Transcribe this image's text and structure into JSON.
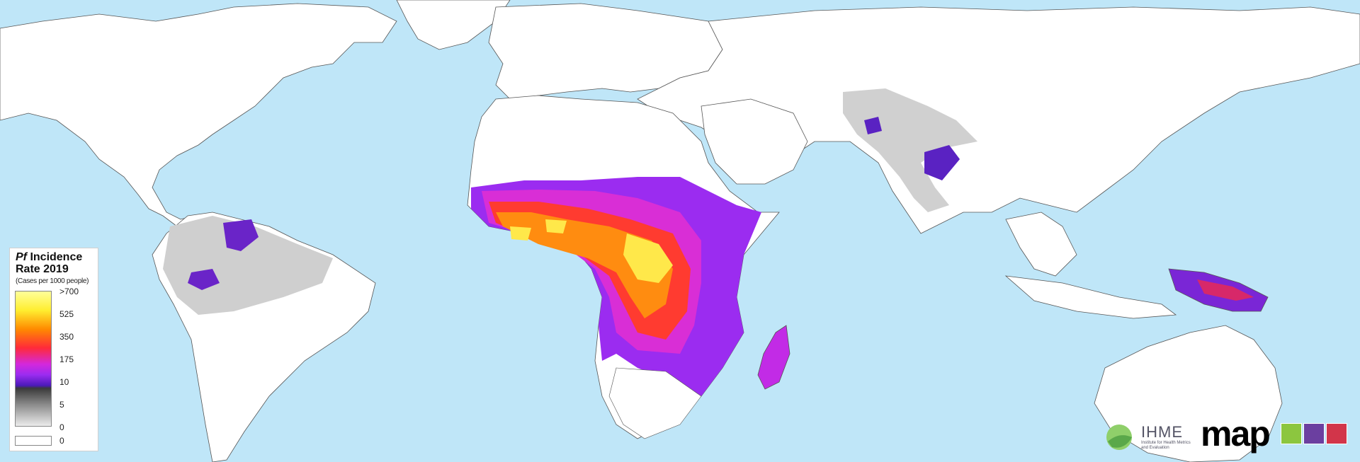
{
  "legend": {
    "title_prefix": "Pf",
    "title_rest": " Incidence Rate 2019",
    "subtitle": "(Cases per 1000 people)",
    "ticks": [
      ">700",
      "525",
      "350",
      "175",
      "10",
      "5",
      "0"
    ],
    "zero_label": "0"
  },
  "logos": {
    "ihme": "IHME",
    "ihme_full": "Institute for Health Metrics and Evaluation",
    "map": "map"
  },
  "colors": {
    "ocean": "#bfe6f8",
    "land": "#ffffff",
    "border": "#555555",
    "high": "#ffff9a",
    "mid": "#ff8a00",
    "low": "#9b2cf0",
    "gray": "#cfcfcf"
  }
}
